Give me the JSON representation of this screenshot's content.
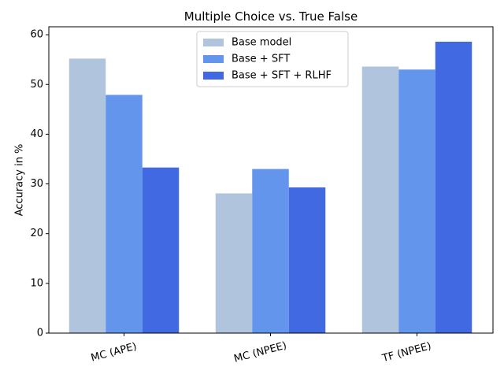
{
  "chart_data": {
    "type": "bar",
    "title": "Multiple Choice vs. True False",
    "xlabel": "",
    "ylabel": "Accuracy in %",
    "categories": [
      "MC (APE)",
      "MC (NPEE)",
      "TF (NPEE)"
    ],
    "series": [
      {
        "name": "Base model",
        "color": "#b0c4de",
        "values": [
          55.2,
          28.1,
          53.6
        ]
      },
      {
        "name": "Base + SFT",
        "color": "#6495ed",
        "values": [
          47.9,
          33.0,
          53.0
        ]
      },
      {
        "name": "Base + SFT + RLHF",
        "color": "#4169e1",
        "values": [
          33.3,
          29.3,
          58.6
        ]
      }
    ],
    "ylim": [
      0,
      61.6
    ],
    "yticks": [
      0,
      10,
      20,
      30,
      40,
      50,
      60
    ],
    "grid": false,
    "legend": "upper-center",
    "xtick_rotation": -15
  }
}
